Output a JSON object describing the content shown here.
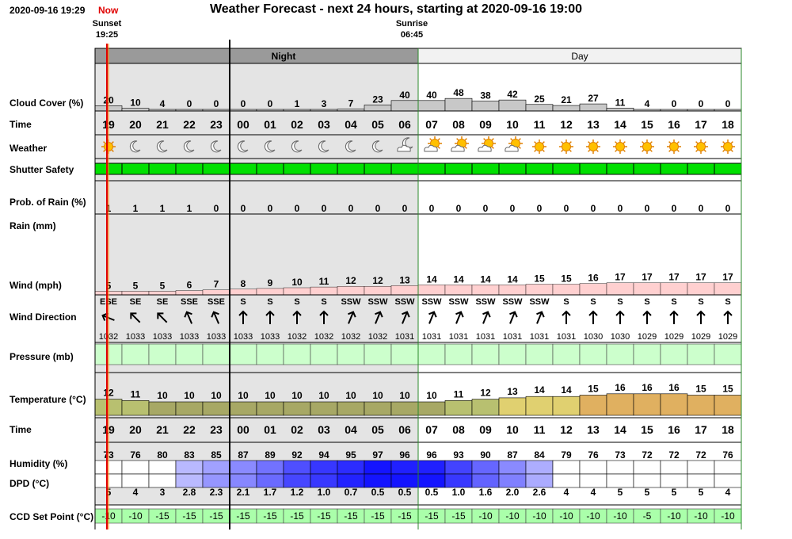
{
  "header": {
    "date": "2020-09-16 19:29",
    "now": "Now",
    "title": "Weather Forecast - next 24 hours, starting at 2020-09-16 19:00",
    "sunset_label": "Sunset",
    "sunset_time": "19:25",
    "sunrise_label": "Sunrise",
    "sunrise_time": "06:45"
  },
  "chart_data": {
    "type": "table",
    "period_labels": {
      "night": "Night",
      "day": "Day"
    },
    "hours": [
      "19",
      "20",
      "21",
      "22",
      "23",
      "00",
      "01",
      "02",
      "03",
      "04",
      "05",
      "06",
      "07",
      "08",
      "09",
      "10",
      "11",
      "12",
      "13",
      "14",
      "15",
      "16",
      "17",
      "18"
    ],
    "row_labels": {
      "cloud": "Cloud Cover (%)",
      "time": "Time",
      "weather": "Weather",
      "shutter": "Shutter Safety",
      "rain_prob": "Prob. of Rain (%)",
      "rain": "Rain (mm)",
      "wind": "Wind (mph)",
      "wind_dir": "Wind Direction",
      "pressure": "Pressure (mb)",
      "temperature": "Temperature (°C)",
      "time2": "Time",
      "humidity": "Humidity (%)",
      "dpd": "DPD (°C)",
      "ccd": "CCD Set Point (°C)"
    },
    "cloud_cover": [
      "20",
      "10",
      "4",
      "0",
      "0",
      "0",
      "0",
      "1",
      "3",
      "7",
      "23",
      "40",
      "40",
      "48",
      "38",
      "42",
      "25",
      "21",
      "27",
      "11",
      "4",
      "0",
      "0",
      "0"
    ],
    "weather_icons": [
      "sun-icon",
      "moon-icon",
      "moon-icon",
      "moon-icon",
      "moon-icon",
      "moon-icon",
      "moon-icon",
      "moon-icon",
      "moon-icon",
      "moon-icon",
      "moon-icon",
      "moon-cloud-icon",
      "sun-cloud-icon",
      "sun-cloud-icon",
      "sun-cloud-icon",
      "sun-cloud-icon",
      "sun-icon",
      "sun-icon",
      "sun-icon",
      "sun-icon",
      "sun-icon",
      "sun-icon",
      "sun-icon",
      "sun-icon"
    ],
    "shutter_safety_color": "#00e000",
    "rain_probability": [
      "1",
      "1",
      "1",
      "1",
      "0",
      "0",
      "0",
      "0",
      "0",
      "0",
      "0",
      "0",
      "0",
      "0",
      "0",
      "0",
      "0",
      "0",
      "0",
      "0",
      "0",
      "0",
      "0",
      "0"
    ],
    "wind_speed": [
      "5",
      "5",
      "5",
      "6",
      "7",
      "8",
      "9",
      "10",
      "11",
      "12",
      "12",
      "13",
      "14",
      "14",
      "14",
      "14",
      "15",
      "15",
      "16",
      "17",
      "17",
      "17",
      "17",
      "17"
    ],
    "wind_direction": [
      "ESE",
      "SE",
      "SE",
      "SSE",
      "SSE",
      "S",
      "S",
      "S",
      "S",
      "SSW",
      "SSW",
      "SSW",
      "SSW",
      "SSW",
      "SSW",
      "SSW",
      "SSW",
      "S",
      "S",
      "S",
      "S",
      "S",
      "S",
      "S"
    ],
    "wind_direction_deg": [
      112,
      135,
      135,
      157,
      157,
      180,
      180,
      180,
      180,
      202,
      202,
      202,
      202,
      202,
      202,
      202,
      202,
      180,
      180,
      180,
      180,
      180,
      180,
      180
    ],
    "pressure": [
      "1032",
      "1033",
      "1033",
      "1033",
      "1033",
      "1033",
      "1033",
      "1032",
      "1032",
      "1032",
      "1032",
      "1031",
      "1031",
      "1031",
      "1031",
      "1031",
      "1031",
      "1031",
      "1030",
      "1030",
      "1029",
      "1029",
      "1029",
      "1029"
    ],
    "temperature": [
      "12",
      "11",
      "10",
      "10",
      "10",
      "10",
      "10",
      "10",
      "10",
      "10",
      "10",
      "10",
      "10",
      "11",
      "12",
      "13",
      "14",
      "14",
      "15",
      "16",
      "16",
      "16",
      "15",
      "15"
    ],
    "humidity": [
      "73",
      "76",
      "80",
      "83",
      "85",
      "87",
      "89",
      "92",
      "94",
      "95",
      "97",
      "96",
      "96",
      "93",
      "90",
      "87",
      "84",
      "79",
      "76",
      "73",
      "72",
      "72",
      "72",
      "76"
    ],
    "dpd": [
      "5",
      "4",
      "3",
      "2.8",
      "2.3",
      "2.1",
      "1.7",
      "1.2",
      "1.0",
      "0.7",
      "0.5",
      "0.5",
      "0.5",
      "1.0",
      "1.6",
      "2.0",
      "2.6",
      "4",
      "4",
      "5",
      "5",
      "5",
      "5",
      "4"
    ],
    "ccd_set_point": [
      "-10",
      "-10",
      "-15",
      "-15",
      "-15",
      "-15",
      "-15",
      "-15",
      "-15",
      "-15",
      "-15",
      "-15",
      "-15",
      "-15",
      "-10",
      "-10",
      "-10",
      "-10",
      "-10",
      "-10",
      "-5",
      "-10",
      "-10",
      "-10"
    ],
    "colors": {
      "night_shade": "#e4e4e4",
      "night_bar": "#9a9a9a",
      "cloud_bar": "#c8c8c8",
      "wind_bar": "#ffd0d0",
      "pressure_fill": "#ccffcc",
      "ccd_fill": "#aaffaa",
      "sunset_line": "#e00000",
      "border_green": "#2a8a2a"
    }
  }
}
